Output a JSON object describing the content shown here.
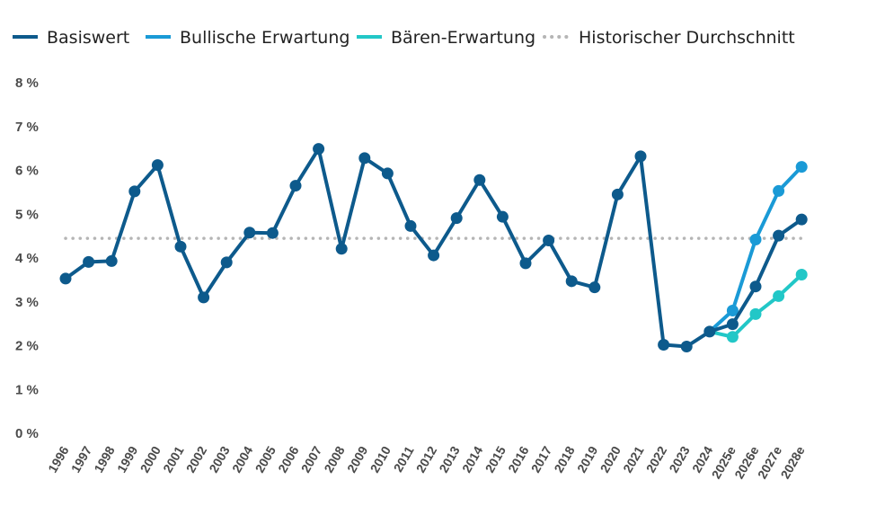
{
  "chart_data": {
    "type": "line",
    "title": "",
    "xlabel": "",
    "ylabel": "",
    "ylim": [
      0,
      8
    ],
    "yticks": [
      "0 %",
      "1 %",
      "2 %",
      "3 %",
      "4 %",
      "5 %",
      "6 %",
      "7 %",
      "8 %"
    ],
    "grid": false,
    "legend_position": "top-left",
    "categories": [
      "1996",
      "1997",
      "1998",
      "1999",
      "2000",
      "2001",
      "2002",
      "2003",
      "2004",
      "2005",
      "2006",
      "2007",
      "2008",
      "2009",
      "2010",
      "2011",
      "2012",
      "2013",
      "2014",
      "2015",
      "2016",
      "2017",
      "2018",
      "2019",
      "2020",
      "2021",
      "2022",
      "2023",
      "2024",
      "2025e",
      "2026e",
      "2027e",
      "2028e"
    ],
    "series": [
      {
        "name": "Basiswert",
        "color": "#0d5a8c",
        "style": "solid",
        "values": [
          3.53,
          3.91,
          3.93,
          5.52,
          6.12,
          4.26,
          3.1,
          3.9,
          4.58,
          4.57,
          5.65,
          6.49,
          4.21,
          6.28,
          5.93,
          4.73,
          4.06,
          4.91,
          5.78,
          4.94,
          3.88,
          4.4,
          3.47,
          3.33,
          5.45,
          6.32,
          2.02,
          1.98,
          2.32,
          2.49,
          3.35,
          4.51,
          4.88
        ]
      },
      {
        "name": "Bullische Erwartung",
        "color": "#1a9ad6",
        "style": "solid",
        "values": [
          null,
          null,
          null,
          null,
          null,
          null,
          null,
          null,
          null,
          null,
          null,
          null,
          null,
          null,
          null,
          null,
          null,
          null,
          null,
          null,
          null,
          null,
          null,
          null,
          null,
          null,
          null,
          null,
          2.32,
          2.8,
          4.42,
          5.53,
          6.08
        ]
      },
      {
        "name": "Bären-Erwartung",
        "color": "#22c7c7",
        "style": "solid",
        "values": [
          null,
          null,
          null,
          null,
          null,
          null,
          null,
          null,
          null,
          null,
          null,
          null,
          null,
          null,
          null,
          null,
          null,
          null,
          null,
          null,
          null,
          null,
          null,
          null,
          null,
          null,
          null,
          null,
          2.32,
          2.2,
          2.72,
          3.13,
          3.62
        ]
      },
      {
        "name": "Historischer Durchschnitt",
        "color": "#b5b5b5",
        "style": "dotted",
        "values": [
          4.45,
          4.45,
          4.45,
          4.45,
          4.45,
          4.45,
          4.45,
          4.45,
          4.45,
          4.45,
          4.45,
          4.45,
          4.45,
          4.45,
          4.45,
          4.45,
          4.45,
          4.45,
          4.45,
          4.45,
          4.45,
          4.45,
          4.45,
          4.45,
          4.45,
          4.45,
          4.45,
          4.45,
          4.45,
          4.45,
          4.45,
          4.45,
          4.45
        ]
      }
    ]
  }
}
